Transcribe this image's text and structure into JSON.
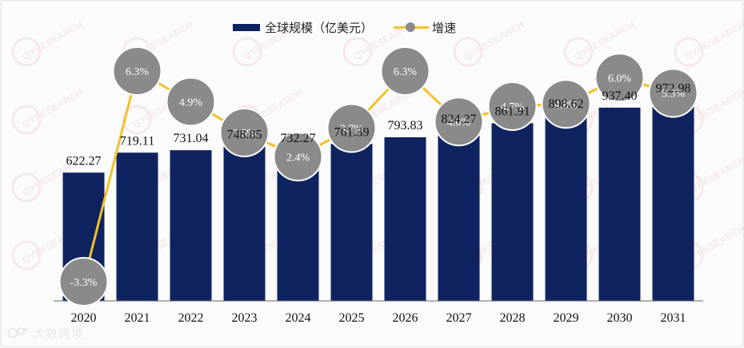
{
  "legend": {
    "bar_label": "全球规模（亿美元）",
    "line_label": "增速"
  },
  "watermark": {
    "text": "大数跨境",
    "brand": "QYRESEARCH"
  },
  "colors": {
    "bar": "#0f2360",
    "line": "#f2c22a",
    "marker": "#8a8a8a",
    "marker_border": "#ffffff"
  },
  "chart_data": {
    "type": "bar",
    "categories": [
      "2020",
      "2021",
      "2022",
      "2023",
      "2024",
      "2025",
      "2026",
      "2027",
      "2028",
      "2029",
      "2030",
      "2031"
    ],
    "series": [
      {
        "name": "全球规模（亿美元）",
        "type": "bar",
        "values": [
          622.27,
          719.11,
          731.04,
          748.85,
          732.27,
          761.39,
          793.83,
          824.27,
          861.91,
          898.62,
          937.4,
          972.98
        ],
        "labels": [
          "622.27",
          "719.11",
          "731.04",
          "748.85",
          "732.27",
          "761.39",
          "793.83",
          "824.27",
          "861.91",
          "898.62",
          "937.40",
          "972.98"
        ]
      },
      {
        "name": "增速",
        "type": "line",
        "values": [
          -3.3,
          6.3,
          4.9,
          3.5,
          2.4,
          3.7,
          6.3,
          4.0,
          4.7,
          4.8,
          6.0,
          5.3
        ],
        "labels": [
          "-3.3%",
          "6.3%",
          "4.9%",
          "3.5%",
          "2.4%",
          "3.7%",
          "6.3%",
          "4.0%",
          "4.7%",
          "4.8%",
          "6.0%",
          "5.3%"
        ]
      }
    ],
    "grid": false,
    "legend_position": "top"
  }
}
